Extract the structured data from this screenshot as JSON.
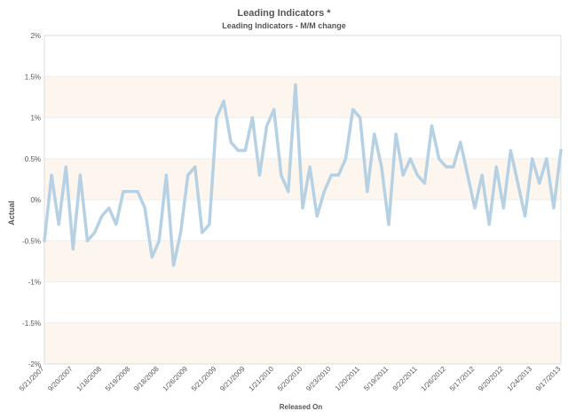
{
  "chart_data": {
    "type": "line",
    "title": "Leading Indicators *",
    "subtitle": "Leading Indicators - M/M change",
    "xlabel": "Released On",
    "ylabel": "Actual",
    "ylim": [
      -2,
      2
    ],
    "y_ticks": [
      "2%",
      "1.5%",
      "1%",
      "0.5%",
      "0%",
      "-0.5%",
      "-1%",
      "-1.5%",
      "-2%"
    ],
    "x_ticks": [
      "5/21/2007",
      "9/20/2007",
      "1/18/2008",
      "5/19/2008",
      "9/18/2008",
      "1/26/2009",
      "5/21/2009",
      "9/21/2009",
      "1/21/2010",
      "5/20/2010",
      "9/23/2010",
      "1/20/2011",
      "5/19/2011",
      "9/22/2011",
      "1/26/2012",
      "5/17/2012",
      "9/20/2012",
      "1/24/2013",
      "9/17/2013"
    ],
    "grid": true,
    "legend": "none",
    "colors": {
      "line": "#b6d1e3",
      "band": "#fdf6ee",
      "grid": "#eeeeee",
      "axis_text": "#555555"
    },
    "series": [
      {
        "values": [
          -0.5,
          0.3,
          -0.3,
          0.4,
          -0.6,
          0.3,
          -0.5,
          -0.4,
          -0.2,
          -0.1,
          -0.3,
          0.1,
          0.1,
          0.1,
          -0.1,
          -0.7,
          -0.5,
          0.3,
          -0.8,
          -0.4,
          0.3,
          0.4,
          -0.4,
          -0.3,
          1.0,
          1.2,
          0.7,
          0.6,
          0.6,
          1.0,
          0.3,
          0.9,
          1.1,
          0.3,
          0.1,
          1.4,
          -0.1,
          0.4,
          -0.2,
          0.1,
          0.3,
          0.3,
          0.5,
          1.1,
          1.0,
          0.1,
          0.8,
          0.4,
          -0.3,
          0.8,
          0.3,
          0.5,
          0.3,
          0.2,
          0.9,
          0.5,
          0.4,
          0.4,
          0.7,
          0.3,
          -0.1,
          0.3,
          -0.3,
          0.4,
          -0.1,
          0.6,
          0.2,
          -0.2,
          0.5,
          0.2,
          0.5,
          -0.1,
          0.6
        ]
      }
    ]
  }
}
